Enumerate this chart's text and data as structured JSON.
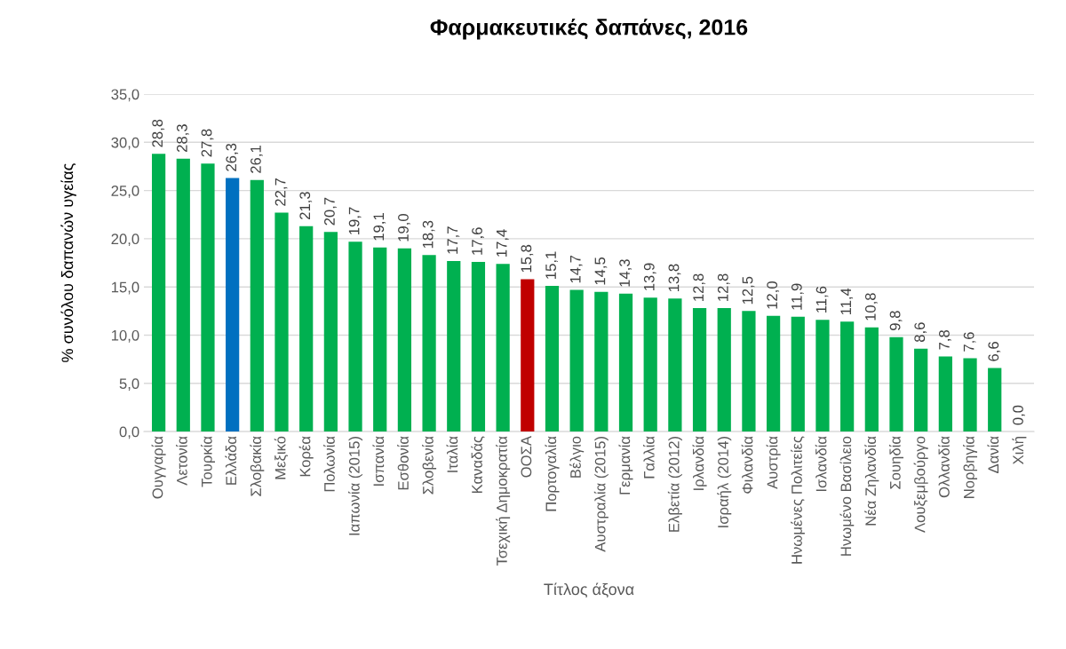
{
  "chart_data": {
    "type": "bar",
    "title": "Φαρμακευτικές δαπάνες, 2016",
    "xlabel": "Τίτλος άξονα",
    "ylabel": "% συνόλου δαπανών υγείας",
    "categories": [
      "Ουγγαρία",
      "Λετονία",
      "Τουρκία",
      "Ελλάδα",
      "Σλοβακία",
      "Μεξικό",
      "Κορέα",
      "Πολωνία",
      "Ιαπωνία (2015)",
      "Ισπανία",
      "Εσθονία",
      "Σλοβενία",
      "Ιταλία",
      "Καναδάς",
      "Τσεχική Δημοκρατία",
      "ΟΟΣΑ",
      "Πορτογαλία",
      "Βέλγιο",
      "Αυστραλία (2015)",
      "Γερμανία",
      "Γαλλία",
      "Ελβετία (2012)",
      "Ιρλανδία",
      "Ισραήλ (2014)",
      "Φιλανδία",
      "Αυστρία",
      "Ηνωμένες Πολιτείες",
      "Ισλανδία",
      "Ηνωμένο Βασίλειο",
      "Νέα Ζηλανδία",
      "Σουηδία",
      "Λουξεμβούργο",
      "Ολλανδία",
      "Νορβηγία",
      "Δανία",
      "Χιλή"
    ],
    "values": [
      28.8,
      28.3,
      27.8,
      26.3,
      26.1,
      22.7,
      21.3,
      20.7,
      19.7,
      19.1,
      19.0,
      18.3,
      17.7,
      17.6,
      17.4,
      15.8,
      15.1,
      14.7,
      14.5,
      14.3,
      13.9,
      13.8,
      12.8,
      12.8,
      12.5,
      12.0,
      11.9,
      11.6,
      11.4,
      10.8,
      9.8,
      8.6,
      7.8,
      7.6,
      6.6,
      0.0
    ],
    "value_labels": [
      "28,8",
      "28,3",
      "27,8",
      "26,3",
      "26,1",
      "22,7",
      "21,3",
      "20,7",
      "19,7",
      "19,1",
      "19,0",
      "18,3",
      "17,7",
      "17,6",
      "17,4",
      "15,8",
      "15,1",
      "14,7",
      "14,5",
      "14,3",
      "13,9",
      "13,8",
      "12,8",
      "12,8",
      "12,5",
      "12,0",
      "11,9",
      "11,6",
      "11,4",
      "10,8",
      "9,8",
      "8,6",
      "7,8",
      "7,6",
      "6,6",
      "0,0"
    ],
    "colors": [
      "#00b050",
      "#00b050",
      "#00b050",
      "#0070c0",
      "#00b050",
      "#00b050",
      "#00b050",
      "#00b050",
      "#00b050",
      "#00b050",
      "#00b050",
      "#00b050",
      "#00b050",
      "#00b050",
      "#00b050",
      "#c00000",
      "#00b050",
      "#00b050",
      "#00b050",
      "#00b050",
      "#00b050",
      "#00b050",
      "#00b050",
      "#00b050",
      "#00b050",
      "#00b050",
      "#00b050",
      "#00b050",
      "#00b050",
      "#00b050",
      "#00b050",
      "#00b050",
      "#00b050",
      "#00b050",
      "#00b050",
      "#00b050"
    ],
    "ylim": [
      0,
      35
    ],
    "yticks": [
      {
        "value": 0,
        "label": "0,0"
      },
      {
        "value": 5,
        "label": "5,0"
      },
      {
        "value": 10,
        "label": "10,0"
      },
      {
        "value": 15,
        "label": "15,0"
      },
      {
        "value": 20,
        "label": "20,0"
      },
      {
        "value": 25,
        "label": "25,0"
      },
      {
        "value": 30,
        "label": "30,0"
      },
      {
        "value": 35,
        "label": "35,0"
      }
    ],
    "grid": "y"
  }
}
